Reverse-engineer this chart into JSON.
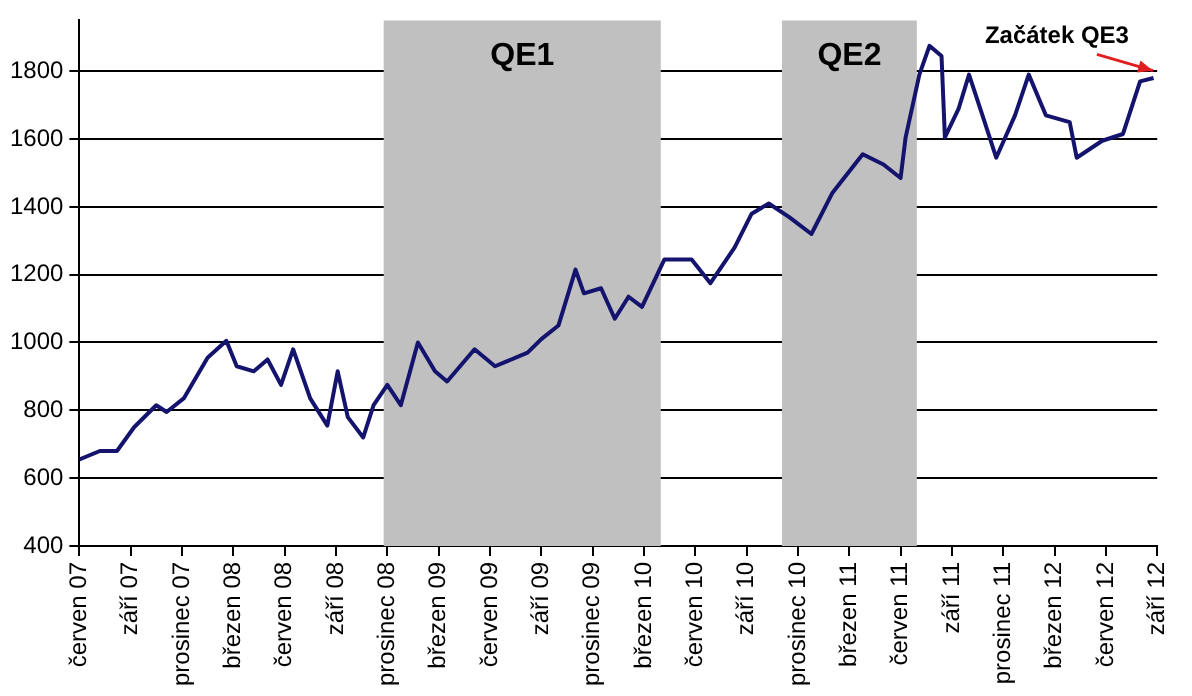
{
  "chart_data": {
    "type": "line",
    "x": [
      "2007-06-01",
      "2007-07-07",
      "2007-08-07",
      "2007-09-07",
      "2007-10-16",
      "2007-11-04",
      "2007-12-04",
      "2008-01-16",
      "2008-02-19",
      "2008-03-07",
      "2008-04-07",
      "2008-05-01",
      "2008-05-25",
      "2008-06-16",
      "2008-07-16",
      "2008-08-16",
      "2008-09-04",
      "2008-09-22",
      "2008-10-19",
      "2008-11-07",
      "2008-12-01",
      "2008-12-25",
      "2009-01-25",
      "2009-02-25",
      "2009-03-16",
      "2009-05-04",
      "2009-06-10",
      "2009-08-07",
      "2009-09-01",
      "2009-10-01",
      "2009-11-01",
      "2009-11-16",
      "2009-12-16",
      "2010-01-10",
      "2010-02-04",
      "2010-02-28",
      "2010-04-07",
      "2010-05-25",
      "2010-06-28",
      "2010-08-10",
      "2010-09-10",
      "2010-10-10",
      "2010-11-16",
      "2010-12-25",
      "2011-02-01",
      "2011-03-25",
      "2011-05-01",
      "2011-06-01",
      "2011-06-10",
      "2011-07-04",
      "2011-07-22",
      "2011-08-13",
      "2011-08-19",
      "2011-09-13",
      "2011-10-01",
      "2011-10-25",
      "2011-11-19",
      "2011-12-22",
      "2012-01-16",
      "2012-02-16",
      "2012-03-28",
      "2012-04-10",
      "2012-05-25",
      "2012-07-01",
      "2012-08-01",
      "2012-08-25"
    ],
    "series": [
      {
        "color": "#14146e",
        "values": [
          655,
          680,
          680,
          750,
          815,
          795,
          835,
          955,
          1005,
          930,
          915,
          950,
          875,
          980,
          835,
          755,
          915,
          780,
          720,
          815,
          875,
          815,
          1000,
          915,
          885,
          980,
          930,
          970,
          1010,
          1050,
          1215,
          1145,
          1160,
          1070,
          1135,
          1105,
          1245,
          1245,
          1175,
          1280,
          1380,
          1410,
          1370,
          1320,
          1440,
          1555,
          1525,
          1485,
          1605,
          1790,
          1875,
          1845,
          1605,
          1690,
          1790,
          1670,
          1545,
          1670,
          1790,
          1670,
          1650,
          1545,
          1595,
          1615,
          1770,
          1780
        ]
      }
    ],
    "xlim": [
      "2007-06-01",
      "2012-09-01"
    ],
    "xticks": [
      {
        "value": "2007-06-01",
        "label": "červen 07"
      },
      {
        "value": "2007-09-01",
        "label": "září 07"
      },
      {
        "value": "2007-12-01",
        "label": "prosinec 07"
      },
      {
        "value": "2008-03-01",
        "label": "březen 08"
      },
      {
        "value": "2008-06-01",
        "label": "červen 08"
      },
      {
        "value": "2008-09-01",
        "label": "září 08"
      },
      {
        "value": "2008-12-01",
        "label": "prosinec 08"
      },
      {
        "value": "2009-03-01",
        "label": "březen 09"
      },
      {
        "value": "2009-06-01",
        "label": "červen 09"
      },
      {
        "value": "2009-09-01",
        "label": "září 09"
      },
      {
        "value": "2009-12-01",
        "label": "prosinec 09"
      },
      {
        "value": "2010-03-01",
        "label": "březen 10"
      },
      {
        "value": "2010-06-01",
        "label": "červen 10"
      },
      {
        "value": "2010-09-01",
        "label": "září 10"
      },
      {
        "value": "2010-12-01",
        "label": "prosinec 10"
      },
      {
        "value": "2011-03-01",
        "label": "březen 11"
      },
      {
        "value": "2011-06-01",
        "label": "červen 11"
      },
      {
        "value": "2011-09-01",
        "label": "září 11"
      },
      {
        "value": "2011-12-01",
        "label": "prosinec 11"
      },
      {
        "value": "2012-03-01",
        "label": "březen 12"
      },
      {
        "value": "2012-06-01",
        "label": "červen 12"
      },
      {
        "value": "2012-09-01",
        "label": "září 12"
      }
    ],
    "ylim": [
      400,
      1950
    ],
    "yticks": [
      400,
      600,
      800,
      1000,
      1200,
      1400,
      1600,
      1800
    ],
    "grid": "y",
    "legend": false,
    "marker": "none",
    "line_style": "solid",
    "bands": [
      {
        "axis": "x",
        "from": "2008-11-25",
        "to": "2010-03-31",
        "label": "QE1",
        "color": "#c0c0c0"
      },
      {
        "axis": "x",
        "from": "2010-11-03",
        "to": "2011-06-30",
        "label": "QE2",
        "color": "#c0c0c0"
      }
    ],
    "annotations": [
      {
        "text": "Začátek QE3",
        "x": "2012-08-31",
        "y": 1790
      }
    ]
  }
}
